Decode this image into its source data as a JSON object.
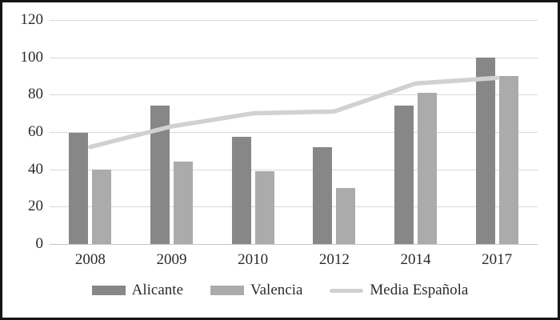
{
  "chart_data": {
    "type": "combo-bar-line",
    "title": "",
    "categories": [
      "2008",
      "2009",
      "2010",
      "2012",
      "2014",
      "2017"
    ],
    "series": [
      {
        "name": "Alicante",
        "kind": "bar",
        "color": "#878787",
        "values": [
          59.5,
          74,
          57.5,
          52,
          74,
          100
        ]
      },
      {
        "name": "Valencia",
        "kind": "bar",
        "color": "#ababab",
        "values": [
          40,
          44,
          39,
          30,
          81,
          90
        ]
      },
      {
        "name": "Media Española",
        "kind": "line",
        "color": "#d1d1d1",
        "values": [
          52,
          63,
          70,
          71,
          86,
          89
        ]
      }
    ],
    "xlabel": "",
    "ylabel": "",
    "ylim": [
      0,
      120
    ],
    "yticks": [
      0,
      20,
      40,
      60,
      80,
      100,
      120
    ],
    "grid": true,
    "legend_position": "bottom"
  },
  "style": {
    "background": "#ffffff",
    "grid_color": "#d9d9d9",
    "axis_color": "#c6c6c6",
    "text_color": "#2b2b2b",
    "frame_border_color": "#141414"
  }
}
